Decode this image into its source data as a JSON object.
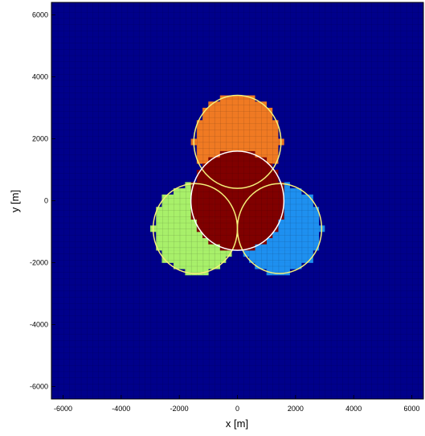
{
  "chart_data": {
    "type": "heatmap",
    "title": "",
    "xlabel": "x [m]",
    "ylabel": "y [m]",
    "xlim": [
      -6400,
      6400
    ],
    "ylim": [
      -6400,
      6400
    ],
    "xticks": [
      -6000,
      -4000,
      -2000,
      0,
      2000,
      4000,
      6000
    ],
    "yticks": [
      -6000,
      -4000,
      -2000,
      0,
      2000,
      4000,
      6000
    ],
    "xtick_labels": [
      "-6000",
      "-4000",
      "-2000",
      "0",
      "2000",
      "4000",
      "6000"
    ],
    "ytick_labels": [
      "-6000",
      "-4000",
      "-2000",
      "0",
      "2000",
      "4000",
      "6000"
    ],
    "grid_cell_size": 200,
    "grid": true,
    "regions": [
      {
        "name": "",
        "color": "#f07a23",
        "center": [
          0,
          1900
        ],
        "radius": 1500
      },
      {
        "name": "",
        "color": "#a8f06a",
        "center": [
          -1450,
          -900
        ],
        "radius": 1450
      },
      {
        "name": "",
        "color": "#1e90f0",
        "center": [
          1450,
          -900
        ],
        "radius": 1450
      },
      {
        "name": "",
        "color": "#800000",
        "center": [
          0,
          0
        ],
        "radius": 1600
      }
    ],
    "background_color": "#00008b",
    "circles": [
      {
        "center": [
          0,
          1900
        ],
        "radius": 1500,
        "color": "#f5f07a"
      },
      {
        "center": [
          -1450,
          -900
        ],
        "radius": 1450,
        "color": "#f5f07a"
      },
      {
        "center": [
          1450,
          -900
        ],
        "radius": 1450,
        "color": "#f5f07a"
      },
      {
        "center": [
          0,
          0
        ],
        "radius": 1600,
        "color": "#ffffff"
      }
    ]
  }
}
